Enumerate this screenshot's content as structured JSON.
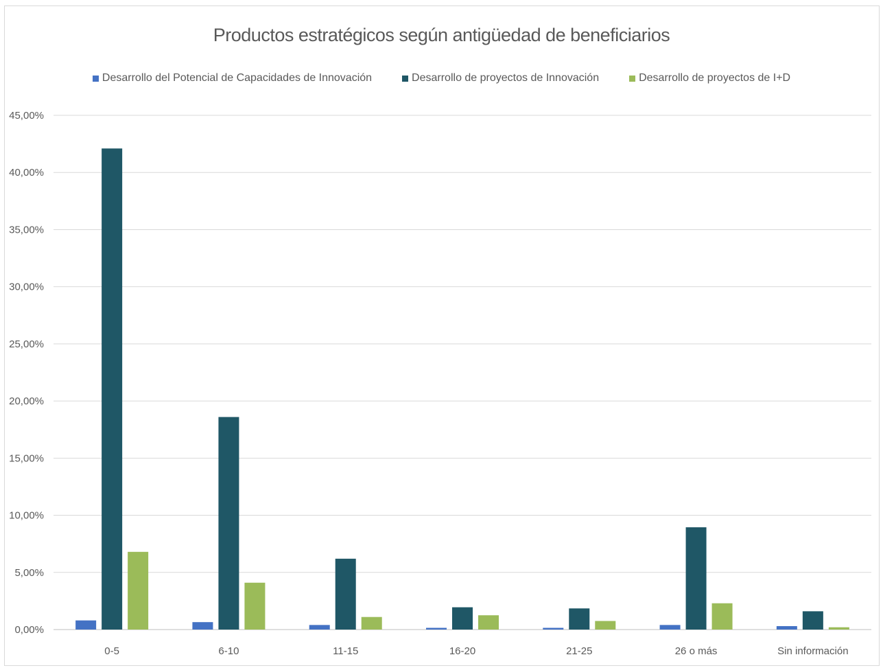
{
  "chart_data": {
    "type": "bar",
    "title": "Productos estratégicos según antigüedad de beneficiarios",
    "xlabel": "",
    "ylabel": "",
    "categories": [
      "0-5",
      "6-10",
      "11-15",
      "16-20",
      "21-25",
      "26 o más",
      "Sin información"
    ],
    "series": [
      {
        "name": "Desarrollo del Potencial de Capacidades de Innovación",
        "color": "#4472c4",
        "values": [
          0.8,
          0.65,
          0.4,
          0.15,
          0.15,
          0.4,
          0.3
        ]
      },
      {
        "name": "Desarrollo de proyectos de Innovación",
        "color": "#1f5766",
        "values": [
          42.1,
          18.6,
          6.2,
          1.95,
          1.85,
          8.95,
          1.6
        ]
      },
      {
        "name": "Desarrollo de proyectos de I+D",
        "color": "#9bbb59",
        "values": [
          6.8,
          4.1,
          1.1,
          1.25,
          0.75,
          2.3,
          0.2
        ]
      }
    ],
    "ylim": [
      0,
      45
    ],
    "yticks": [
      "0,00%",
      "5,00%",
      "10,00%",
      "15,00%",
      "20,00%",
      "25,00%",
      "30,00%",
      "35,00%",
      "40,00%",
      "45,00%"
    ],
    "grid": true,
    "legend_position": "top"
  }
}
